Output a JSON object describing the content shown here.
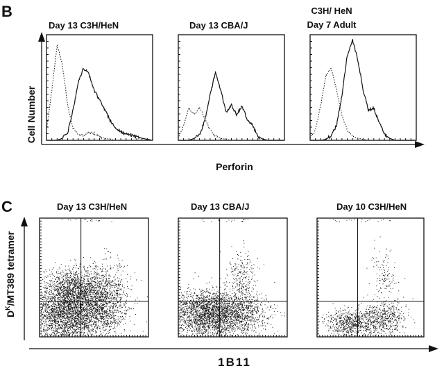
{
  "panel_B": {
    "letter": "B",
    "y_label": "Cell Number",
    "x_label": "Perforin",
    "plots": [
      {
        "title_lines": [
          "Day  13   C3H/HeN"
        ]
      },
      {
        "title_lines": [
          "Day  13   CBA/J"
        ]
      },
      {
        "title_lines": [
          "C3H/ HeN",
          "Day  7   Adult"
        ]
      }
    ]
  },
  "panel_C": {
    "letter": "C",
    "y_label": "Dk/MT389  tetramer",
    "y_label_main": "D",
    "y_label_sup": "K",
    "y_label_rest": "/MT389   tetramer",
    "x_label": "1B11",
    "plots": [
      {
        "title": "Day  13    C3H/HeN"
      },
      {
        "title": "Day  13    CBA/J"
      },
      {
        "title": "Day  10    C3H/HeN"
      }
    ]
  },
  "chart_data": [
    {
      "type": "line",
      "title": "Day 13 C3H/HeN",
      "xlabel": "Perforin",
      "ylabel": "Cell Number",
      "x": [
        0,
        5,
        10,
        15,
        20,
        25,
        30,
        35,
        40,
        45,
        50,
        55,
        60,
        65,
        70,
        75,
        80,
        85,
        90,
        95,
        100
      ],
      "series": [
        {
          "style": "dotted",
          "values": [
            0.1,
            0.5,
            0.95,
            0.75,
            0.35,
            0.12,
            0.06,
            0.05,
            0.08,
            0.07,
            0.04,
            0.02,
            0.01,
            0,
            0,
            0,
            0,
            0,
            0,
            0,
            0
          ]
        },
        {
          "style": "solid",
          "values": [
            0,
            0,
            0,
            0.02,
            0.08,
            0.3,
            0.58,
            0.72,
            0.66,
            0.5,
            0.4,
            0.3,
            0.2,
            0.12,
            0.09,
            0.06,
            0.05,
            0.04,
            0.02,
            0.01,
            0
          ]
        }
      ]
    },
    {
      "type": "line",
      "title": "Day 13 CBA/J",
      "xlabel": "Perforin",
      "ylabel": "Cell Number",
      "x": [
        0,
        5,
        10,
        15,
        20,
        25,
        30,
        35,
        40,
        45,
        50,
        55,
        60,
        65,
        70,
        75,
        80,
        85,
        90,
        95,
        100
      ],
      "series": [
        {
          "style": "dotted",
          "values": [
            0.02,
            0.15,
            0.32,
            0.25,
            0.33,
            0.22,
            0.1,
            0.04,
            0.02,
            0.01,
            0,
            0,
            0,
            0,
            0,
            0,
            0,
            0,
            0,
            0,
            0
          ]
        },
        {
          "style": "solid",
          "values": [
            0,
            0,
            0,
            0.02,
            0.05,
            0.2,
            0.45,
            0.68,
            0.5,
            0.28,
            0.35,
            0.25,
            0.35,
            0.2,
            0.15,
            0.04,
            0.01,
            0,
            0,
            0,
            0
          ]
        }
      ]
    },
    {
      "type": "line",
      "title": "C3H/HeN Day 7 Adult",
      "xlabel": "Perforin",
      "ylabel": "Cell Number",
      "x": [
        0,
        5,
        10,
        15,
        20,
        25,
        30,
        35,
        40,
        45,
        50,
        55,
        60,
        65,
        70,
        75,
        80,
        85,
        90,
        95,
        100
      ],
      "series": [
        {
          "style": "dotted",
          "values": [
            0.02,
            0.1,
            0.35,
            0.65,
            0.72,
            0.5,
            0.25,
            0.1,
            0.04,
            0.02,
            0.01,
            0,
            0,
            0,
            0,
            0,
            0,
            0,
            0,
            0,
            0
          ]
        },
        {
          "style": "solid",
          "values": [
            0,
            0,
            0,
            0.01,
            0.05,
            0.15,
            0.45,
            0.85,
            1.0,
            0.8,
            0.5,
            0.3,
            0.32,
            0.18,
            0.06,
            0.02,
            0,
            0,
            0,
            0,
            0
          ]
        }
      ]
    },
    {
      "type": "scatter",
      "title": "Day 13 C3H/HeN",
      "xlabel": "1B11",
      "ylabel": "Dk/MT389 tetramer",
      "populations": [
        {
          "cx": 0.25,
          "cy": 0.2,
          "sx": 0.17,
          "sy": 0.13,
          "n": 2600
        },
        {
          "cx": 0.55,
          "cy": 0.3,
          "sx": 0.13,
          "sy": 0.15,
          "n": 1500
        },
        {
          "cx": 0.3,
          "cy": 0.42,
          "sx": 0.12,
          "sy": 0.08,
          "n": 700
        }
      ],
      "quadrant_x": 0.38,
      "quadrant_y": 0.3
    },
    {
      "type": "scatter",
      "title": "Day 13 CBA/J",
      "xlabel": "1B11",
      "ylabel": "Dk/MT389 tetramer",
      "populations": [
        {
          "cx": 0.28,
          "cy": 0.2,
          "sx": 0.16,
          "sy": 0.1,
          "n": 2300
        },
        {
          "cx": 0.6,
          "cy": 0.2,
          "sx": 0.12,
          "sy": 0.09,
          "n": 700
        },
        {
          "cx": 0.58,
          "cy": 0.52,
          "sx": 0.07,
          "sy": 0.1,
          "n": 220
        }
      ],
      "quadrant_x": 0.38,
      "quadrant_y": 0.3
    },
    {
      "type": "scatter",
      "title": "Day 10 C3H/HeN",
      "xlabel": "1B11",
      "ylabel": "Dk/MT389 tetramer",
      "populations": [
        {
          "cx": 0.32,
          "cy": 0.12,
          "sx": 0.12,
          "sy": 0.06,
          "n": 700
        },
        {
          "cx": 0.62,
          "cy": 0.16,
          "sx": 0.1,
          "sy": 0.07,
          "n": 500
        },
        {
          "cx": 0.62,
          "cy": 0.52,
          "sx": 0.06,
          "sy": 0.1,
          "n": 120
        }
      ],
      "quadrant_x": 0.38,
      "quadrant_y": 0.3
    }
  ]
}
